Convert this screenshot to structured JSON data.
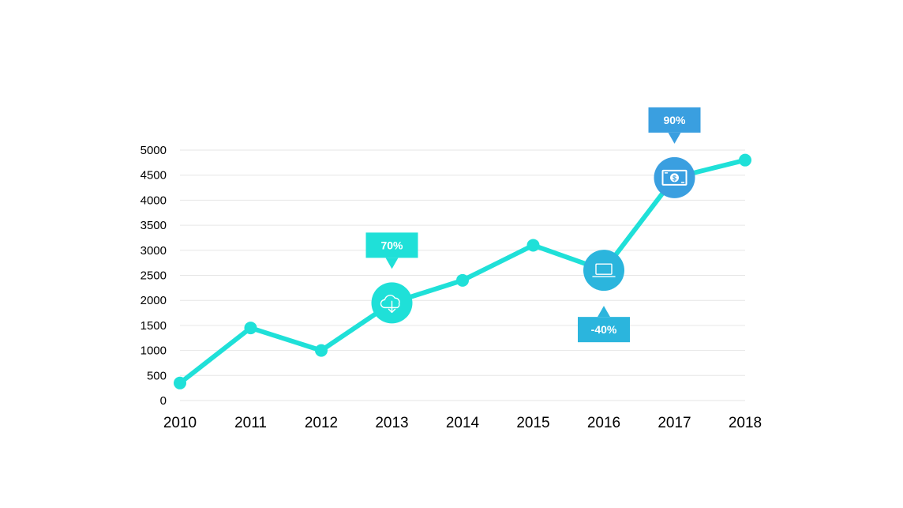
{
  "chart_data": {
    "type": "line",
    "x": [
      "2010",
      "2011",
      "2012",
      "2013",
      "2014",
      "2015",
      "2016",
      "2017",
      "2018"
    ],
    "series": [
      {
        "values": [
          350,
          1450,
          1000,
          1950,
          2400,
          3100,
          2600,
          4450,
          4800
        ]
      }
    ],
    "ylim": [
      0,
      5000
    ],
    "yticks": [
      "0",
      "500",
      "1000",
      "1500",
      "2000",
      "2500",
      "3000",
      "3500",
      "4000",
      "4500",
      "5000"
    ],
    "grid": true,
    "colors": {
      "line": "#1FE0D8",
      "callout_2013": "#1FE0D8",
      "callout_2016": "#2BB5DD",
      "callout_2017": "#3A9FE0"
    },
    "annotations": [
      {
        "x": "2013",
        "label": "70%",
        "icon": "cloud-download-icon",
        "side": "above"
      },
      {
        "x": "2016",
        "label": "-40%",
        "icon": "laptop-icon",
        "side": "below"
      },
      {
        "x": "2017",
        "label": "90%",
        "icon": "money-bill-icon",
        "side": "above"
      }
    ]
  }
}
